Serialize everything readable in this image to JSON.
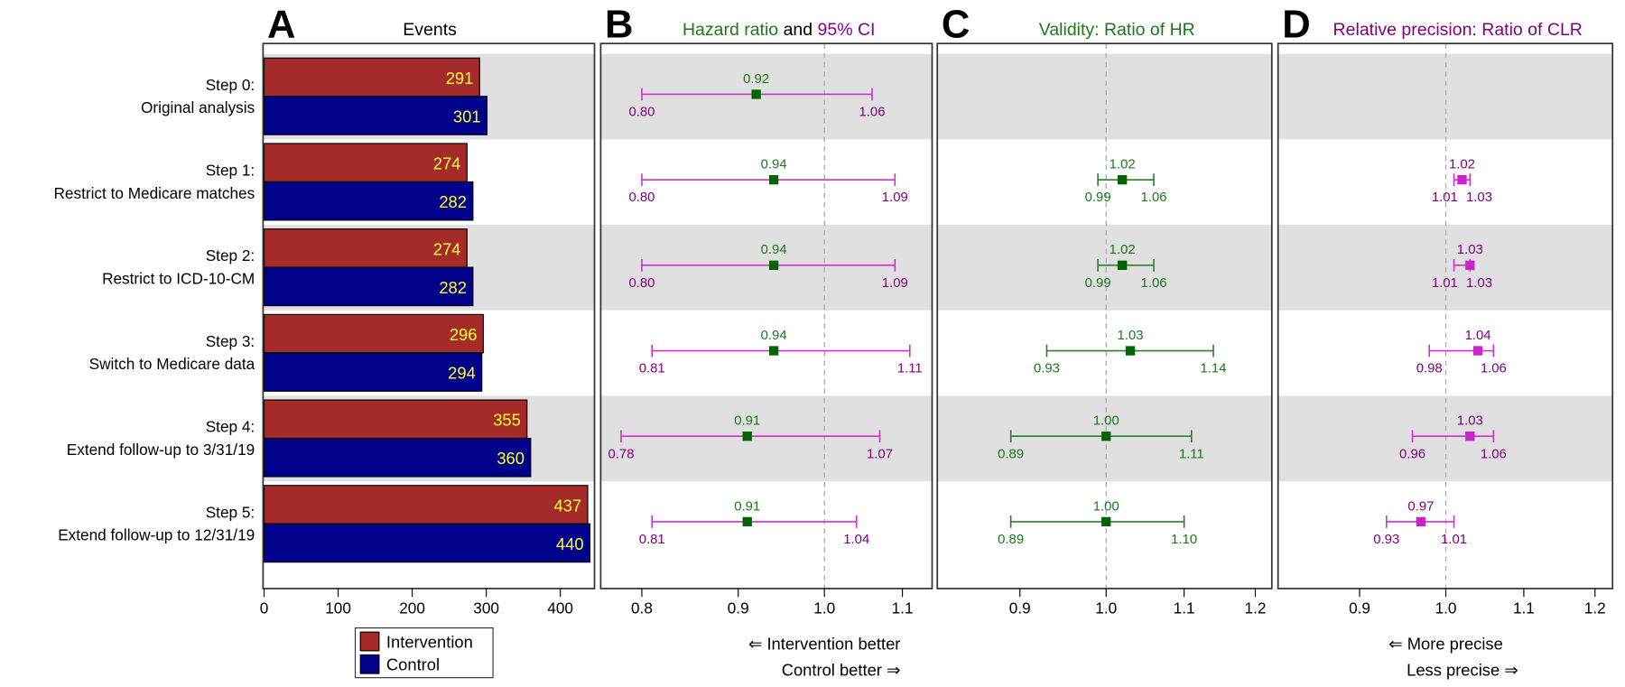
{
  "rows": [
    {
      "line1": "Step 0:",
      "line2": "Original analysis"
    },
    {
      "line1": "Step 1:",
      "line2": "Restrict to Medicare matches"
    },
    {
      "line1": "Step 2:",
      "line2": "Restrict to ICD-10-CM"
    },
    {
      "line1": "Step 3:",
      "line2": "Switch to Medicare data"
    },
    {
      "line1": "Step 4:",
      "line2": "Extend follow-up to 3/31/19"
    },
    {
      "line1": "Step 5:",
      "line2": "Extend follow-up to 12/31/19"
    }
  ],
  "colors": {
    "green_text": "#1a7a1a",
    "green_line": "#2e7d2e",
    "green_point": "#006400",
    "purple_text": "#800080",
    "magenta_line": "#cc33cc",
    "magenta_point": "#cc22cc",
    "band_gray": "#e0e0e0",
    "ref_line": "#b0b0b0"
  },
  "chart_data": [
    {
      "type": "bar",
      "panel_letter": "A",
      "title": "Events",
      "categories": [
        "Step 0",
        "Step 1",
        "Step 2",
        "Step 3",
        "Step 4",
        "Step 5"
      ],
      "series": [
        {
          "name": "Intervention",
          "color": "#a52a2a",
          "values": [
            291,
            274,
            274,
            296,
            355,
            437
          ]
        },
        {
          "name": "Control",
          "color": "#00008b",
          "values": [
            301,
            282,
            282,
            294,
            360,
            440
          ]
        }
      ],
      "value_label_color": "#ffff33",
      "xticks": [
        0,
        100,
        200,
        300,
        400
      ],
      "xlim": [
        0,
        447
      ],
      "legend": "bottom"
    },
    {
      "type": "forest",
      "panel_letter": "B",
      "title_parts": [
        {
          "text": "Hazard ratio",
          "color": "#1a7a1a"
        },
        {
          "text": " and ",
          "color": "#000000"
        },
        {
          "text": "95% CI",
          "color": "#800080"
        }
      ],
      "scale": "log",
      "reference": 1.0,
      "xticks": [
        0.8,
        0.9,
        1.0,
        1.1
      ],
      "estimate": [
        0.92,
        0.94,
        0.94,
        0.94,
        0.91,
        0.91
      ],
      "lower": [
        0.8,
        0.8,
        0.8,
        0.81,
        0.78,
        0.81
      ],
      "upper": [
        1.06,
        1.09,
        1.09,
        1.11,
        1.07,
        1.04
      ],
      "point_style": "green",
      "ci_style": "magenta",
      "annotations": [
        "⇐ Intervention better",
        "Control better ⇒"
      ]
    },
    {
      "type": "forest",
      "panel_letter": "C",
      "title_parts": [
        {
          "text": "Validity: Ratio of HR",
          "color": "#1a7a1a"
        }
      ],
      "scale": "log",
      "reference": 1.0,
      "xticks": [
        0.9,
        1.0,
        1.1,
        1.2
      ],
      "estimate": [
        null,
        1.02,
        1.02,
        1.03,
        1.0,
        1.0
      ],
      "lower": [
        null,
        0.99,
        0.99,
        0.93,
        0.89,
        0.89
      ],
      "upper": [
        null,
        1.06,
        1.06,
        1.14,
        1.11,
        1.1
      ],
      "point_style": "green",
      "ci_style": "green",
      "annotations": []
    },
    {
      "type": "forest",
      "panel_letter": "D",
      "title_parts": [
        {
          "text": "Relative precision: Ratio of CLR",
          "color": "#800080"
        }
      ],
      "scale": "log",
      "reference": 1.0,
      "xticks": [
        0.9,
        1.0,
        1.1,
        1.2
      ],
      "estimate": [
        null,
        1.02,
        1.03,
        1.04,
        1.03,
        0.97
      ],
      "lower": [
        null,
        1.01,
        1.01,
        0.98,
        0.96,
        0.93
      ],
      "upper": [
        null,
        1.03,
        1.03,
        1.06,
        1.06,
        1.01
      ],
      "point_style": "magenta",
      "ci_style": "magenta",
      "annotations": [
        "⇐ More precise",
        "Less precise ⇒"
      ]
    }
  ]
}
